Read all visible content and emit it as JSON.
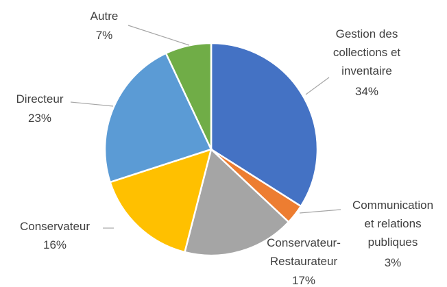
{
  "chart_data": {
    "type": "pie",
    "categories": [
      "Gestion des\ncollections et\ninventaire",
      "Communication\net relations\npubliques",
      "Conservateur-\nRestaurateur",
      "Conservateur",
      "Directeur",
      "Autre"
    ],
    "values": [
      34,
      3,
      17,
      16,
      23,
      7
    ],
    "value_labels": [
      "34%",
      "3%",
      "17%",
      "16%",
      "23%",
      "7%"
    ],
    "colors": [
      "#4472c4",
      "#ed7d31",
      "#a5a5a5",
      "#ffc000",
      "#5b9bd5",
      "#70ad47"
    ]
  }
}
